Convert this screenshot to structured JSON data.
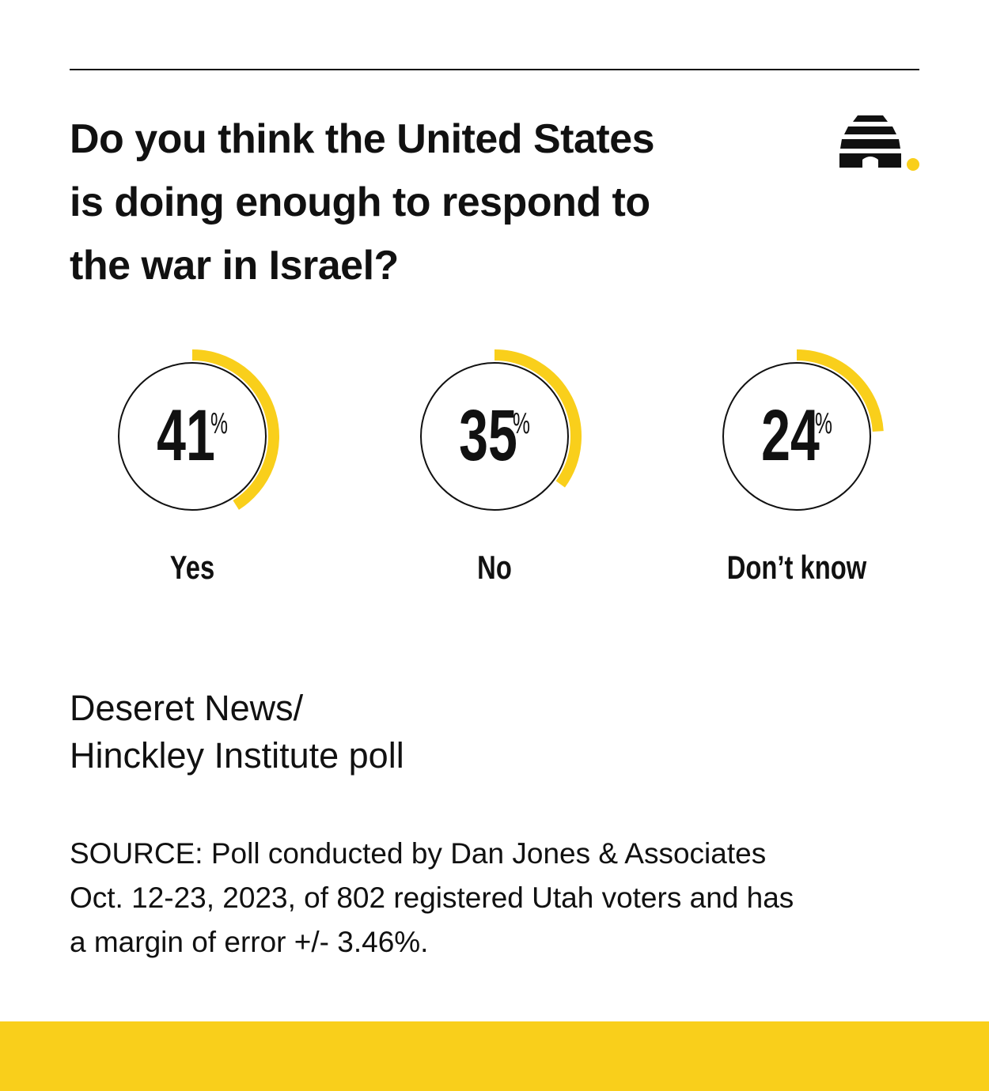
{
  "chart_data": {
    "type": "gauge",
    "title": "Do you think the United States\nis doing enough to respond to\nthe war in Israel?",
    "categories": [
      "Yes",
      "No",
      "Don’t know"
    ],
    "values": [
      41,
      35,
      24
    ],
    "unit": "%",
    "ylim": [
      0,
      100
    ],
    "color": "#f9cf1b",
    "subtitle": "Deseret News/\nHinckley Institute poll",
    "source": "SOURCE: Poll conducted by Dan Jones & Associates\nOct. 12-23, 2023, of 802 registered Utah voters and has\na margin of error +/- 3.46%."
  }
}
